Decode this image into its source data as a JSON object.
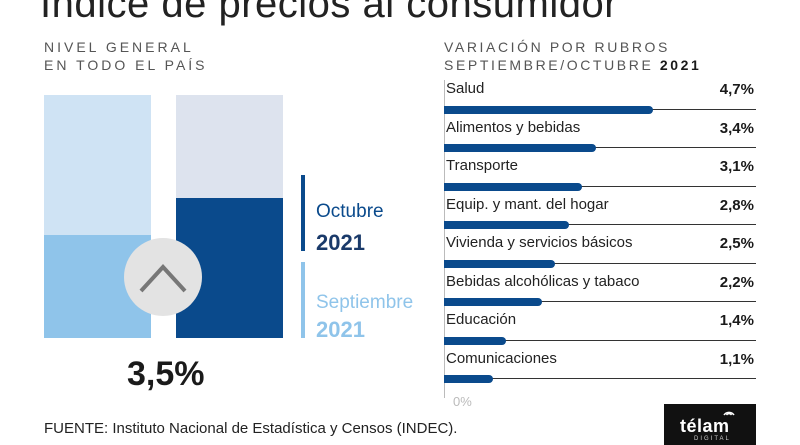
{
  "title": "Índice de precios al consumidor",
  "left_subtitle": [
    "NIVEL GENERAL",
    "EN TODO EL PAÍS"
  ],
  "right_subtitle": {
    "line1": "VARIACIÓN POR RUBROS",
    "line2": "SEPTIEMBRE/OCTUBRE",
    "year": "2021"
  },
  "legend": {
    "october": {
      "month": "Octubre",
      "year": "2021"
    },
    "september": {
      "month": "Septiembre",
      "year": "2021"
    }
  },
  "general_value_label": "3,5%",
  "zero_label": "0%",
  "source": "FUENTE: Instituto Nacional de Estadística y Censos (INDEC).",
  "logo": {
    "text": "télam",
    "sub": "DIGITAL"
  },
  "colors": {
    "dark_blue": "#0a4a8c",
    "light_blue": "#8fc4ea",
    "pale_blue": "#cfe3f4",
    "pale_gray": "#dde3ee"
  },
  "icon": "chevron-up-icon",
  "chart_data": [
    {
      "type": "bar",
      "categories": [
        "Septiembre 2021",
        "Octubre 2021"
      ],
      "values": [
        3.5,
        3.5
      ],
      "comparison": "up"
    },
    {
      "type": "bar",
      "orientation": "horizontal",
      "categories": [
        "Salud",
        "Alimentos y bebidas",
        "Transporte",
        "Equip. y mant. del hogar",
        "Vivienda y servicios básicos",
        "Bebidas alcohólicas y tabaco",
        "Educación",
        "Comunicaciones"
      ],
      "values": [
        4.7,
        3.4,
        3.1,
        2.8,
        2.5,
        2.2,
        1.4,
        1.1
      ],
      "value_labels": [
        "4,7%",
        "3,4%",
        "3,1%",
        "2,8%",
        "2,5%",
        "2,2%",
        "1,4%",
        "1,1%"
      ],
      "xlim": [
        0,
        7
      ]
    }
  ]
}
